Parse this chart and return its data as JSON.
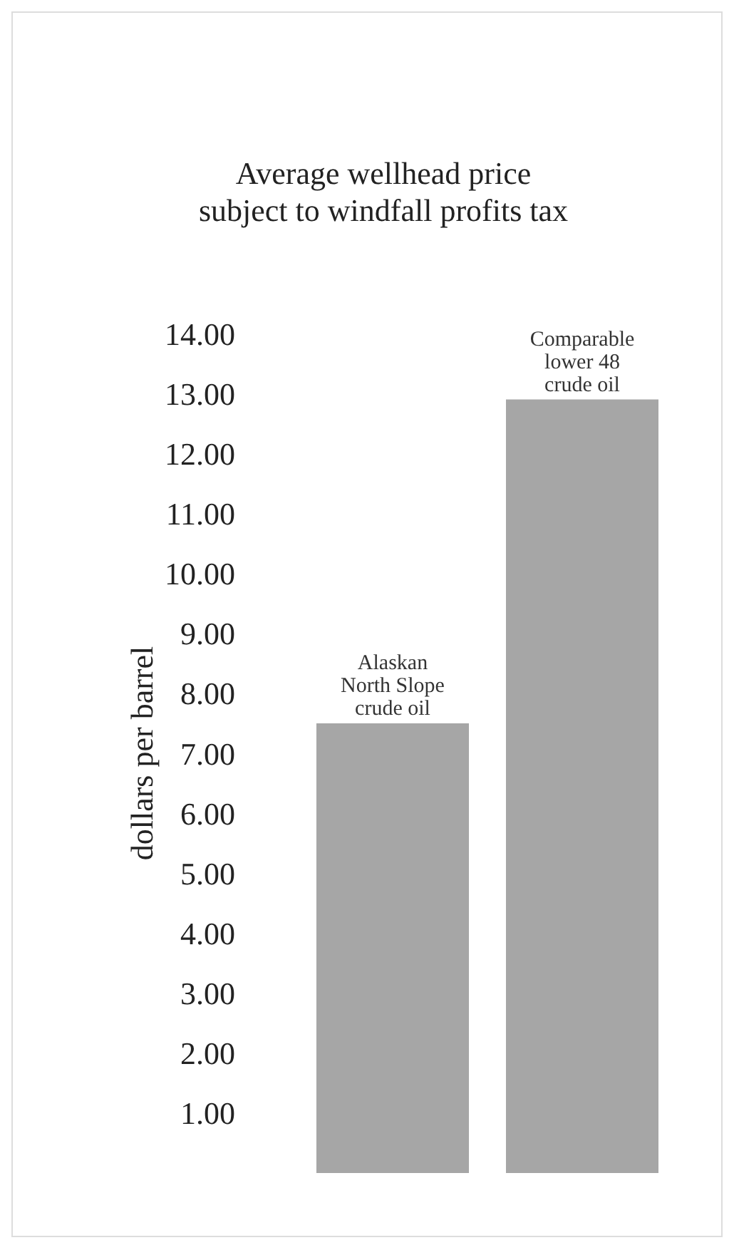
{
  "chart_data": {
    "type": "bar",
    "title": "Average wellhead price subject to windfall profits tax",
    "ylabel": "dollars per barrel",
    "categories": [
      "Alaskan North Slope crude oil",
      "Comparable lower 48 crude oil"
    ],
    "values": [
      7.5,
      12.9
    ],
    "color": "#a6a6a6",
    "ylim": [
      0,
      14
    ],
    "yticks": [
      {
        "value": 1,
        "label": "1.00"
      },
      {
        "value": 2,
        "label": "2.00"
      },
      {
        "value": 3,
        "label": "3.00"
      },
      {
        "value": 4,
        "label": "4.00"
      },
      {
        "value": 5,
        "label": "5.00"
      },
      {
        "value": 6,
        "label": "6.00"
      },
      {
        "value": 7,
        "label": "7.00"
      },
      {
        "value": 8,
        "label": "8.00"
      },
      {
        "value": 9,
        "label": "9.00"
      },
      {
        "value": 10,
        "label": "10.00"
      },
      {
        "value": 11,
        "label": "11.00"
      },
      {
        "value": 12,
        "label": "12.00"
      },
      {
        "value": 13,
        "label": "13.00"
      },
      {
        "value": 14,
        "label": "14.00"
      }
    ],
    "grid": false,
    "legend": false
  }
}
